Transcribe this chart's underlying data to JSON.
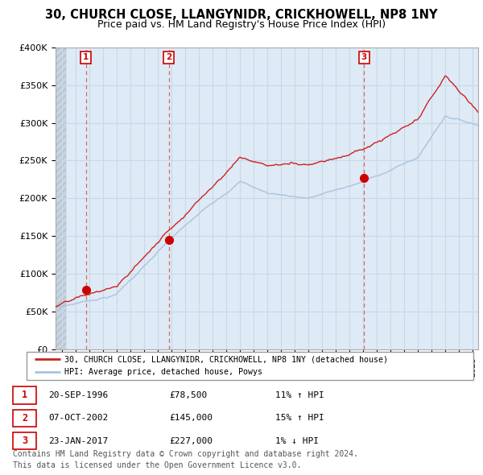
{
  "title": "30, CHURCH CLOSE, LLANGYNIDR, CRICKHOWELL, NP8 1NY",
  "subtitle": "Price paid vs. HM Land Registry's House Price Index (HPI)",
  "title_fontsize": 10.5,
  "subtitle_fontsize": 9.0,
  "ylim": [
    0,
    400000
  ],
  "yticks": [
    0,
    50000,
    100000,
    150000,
    200000,
    250000,
    300000,
    350000,
    400000
  ],
  "ytick_labels": [
    "£0",
    "£50K",
    "£100K",
    "£150K",
    "£200K",
    "£250K",
    "£300K",
    "£350K",
    "£400K"
  ],
  "xlim_start": 1994.5,
  "xlim_end": 2025.4,
  "sale_dates": [
    1996.72,
    2002.77,
    2017.06
  ],
  "sale_prices": [
    78500,
    145000,
    227000
  ],
  "sale_labels": [
    "1",
    "2",
    "3"
  ],
  "hpi_color": "#a8c4e0",
  "price_color": "#cc2222",
  "sale_marker_color": "#cc0000",
  "dashed_line_color": "#dd6666",
  "grid_color": "#c8d8e8",
  "bg_color": "#deeaf5",
  "legend_entries": [
    "30, CHURCH CLOSE, LLANGYNIDR, CRICKHOWELL, NP8 1NY (detached house)",
    "HPI: Average price, detached house, Powys"
  ],
  "table_rows": [
    [
      "1",
      "20-SEP-1996",
      "£78,500",
      "11% ↑ HPI"
    ],
    [
      "2",
      "07-OCT-2002",
      "£145,000",
      "15% ↑ HPI"
    ],
    [
      "3",
      "23-JAN-2017",
      "£227,000",
      "1% ↓ HPI"
    ]
  ],
  "footnote": "Contains HM Land Registry data © Crown copyright and database right 2024.\nThis data is licensed under the Open Government Licence v3.0.",
  "footnote_fontsize": 7.0
}
